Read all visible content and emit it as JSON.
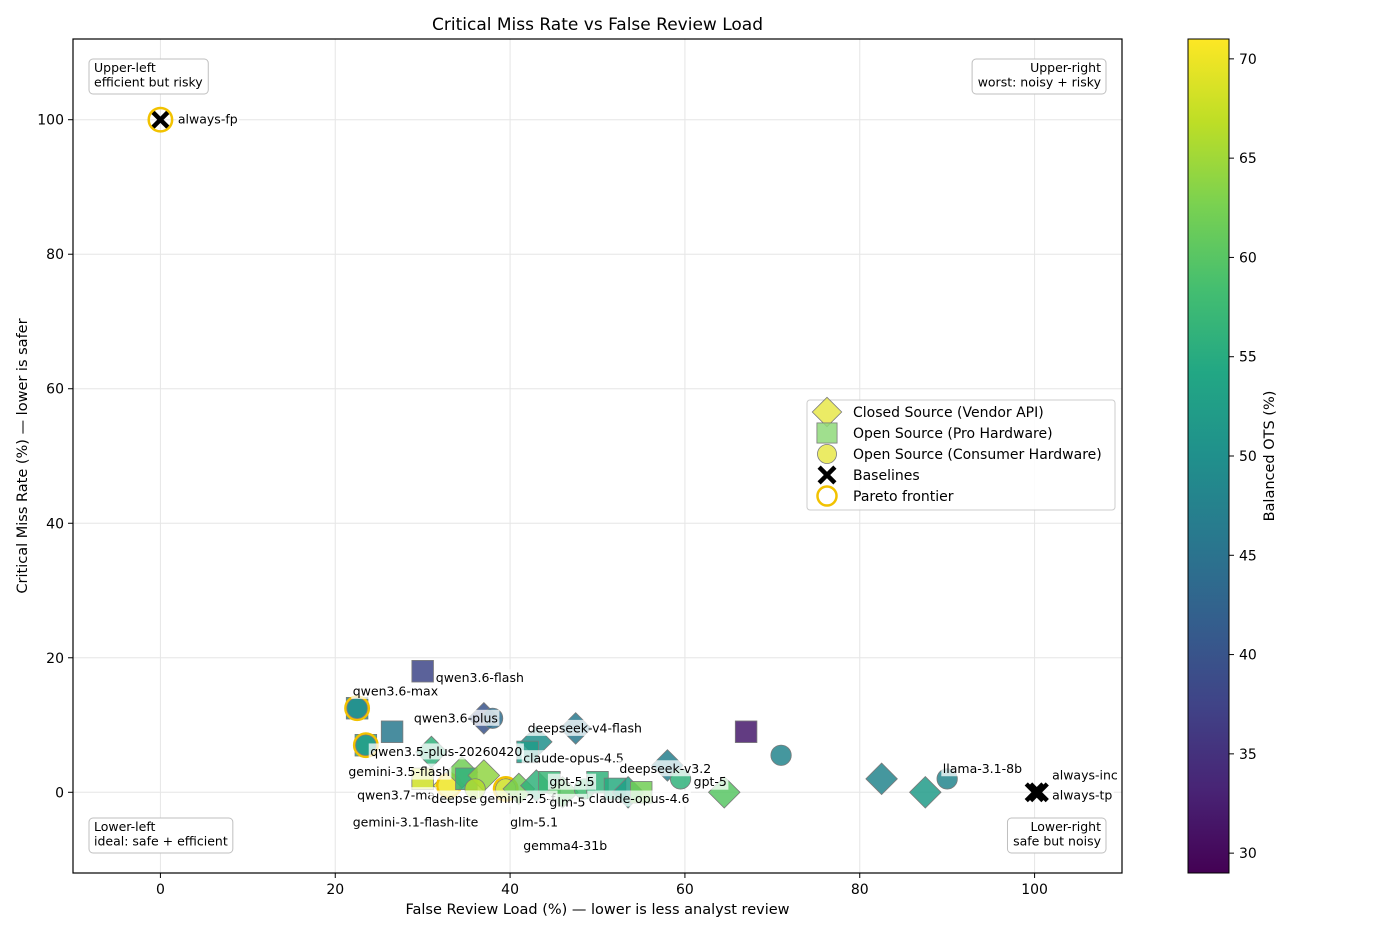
{
  "chart_data": {
    "type": "scatter",
    "title": "Critical Miss Rate vs False Review Load",
    "xlabel": "False Review Load (%) — lower is less analyst review",
    "ylabel": "Critical Miss Rate (%) — lower is safer",
    "xlim": [
      -10,
      110
    ],
    "ylim": [
      -12,
      112
    ],
    "xticks": [
      0,
      20,
      40,
      60,
      80,
      100
    ],
    "yticks": [
      0,
      20,
      40,
      60,
      80,
      100
    ],
    "grid": true,
    "legend_position": "center-right",
    "legend": [
      {
        "label": "Closed Source (Vendor API)",
        "marker": "diamond",
        "color": "#e8e84a"
      },
      {
        "label": "Open Source (Pro Hardware)",
        "marker": "square",
        "color": "#8fd97a"
      },
      {
        "label": "Open Source (Consumer Hardware)",
        "marker": "circle",
        "color": "#e8e84a"
      },
      {
        "label": "Baselines",
        "marker": "x",
        "color": "#000000"
      },
      {
        "label": "Pareto frontier",
        "marker": "ring",
        "color": "#f2c200"
      }
    ],
    "colorbar": {
      "label": "Balanced OTS (%)",
      "range": [
        29,
        71
      ],
      "ticks": [
        30,
        35,
        40,
        45,
        50,
        55,
        60,
        65,
        70
      ],
      "colormap": "viridis"
    },
    "quadrants": [
      {
        "corner": "top-left",
        "lines": [
          "Upper-left",
          "efficient but risky"
        ]
      },
      {
        "corner": "top-right",
        "lines": [
          "Upper-right",
          "worst: noisy + risky"
        ]
      },
      {
        "corner": "bottom-left",
        "lines": [
          "Lower-left",
          "ideal: safe + efficient"
        ]
      },
      {
        "corner": "bottom-right",
        "lines": [
          "Lower-right",
          "safe but noisy"
        ]
      }
    ],
    "points": [
      {
        "x": 0,
        "y": 100,
        "shape": "x",
        "ots": null,
        "pareto": true
      },
      {
        "x": 100,
        "y": 0,
        "shape": "x",
        "ots": null,
        "pareto": false
      },
      {
        "x": 100.5,
        "y": 0,
        "shape": "x",
        "ots": null,
        "pareto": false
      },
      {
        "x": 30,
        "y": 18,
        "shape": "square",
        "ots": 38,
        "pareto": false
      },
      {
        "x": 22.5,
        "y": 12.5,
        "shape": "square",
        "ots": 48,
        "pareto": true
      },
      {
        "x": 22.5,
        "y": 12.5,
        "shape": "circle",
        "ots": 50,
        "pareto": false
      },
      {
        "x": 37,
        "y": 11,
        "shape": "diamond",
        "ots": 40,
        "pareto": false
      },
      {
        "x": 38,
        "y": 11,
        "shape": "circle",
        "ots": 44,
        "pareto": false
      },
      {
        "x": 26.5,
        "y": 9,
        "shape": "square",
        "ots": 46,
        "pareto": false
      },
      {
        "x": 23.5,
        "y": 7,
        "shape": "square",
        "ots": 55,
        "pareto": true
      },
      {
        "x": 23.5,
        "y": 7,
        "shape": "circle",
        "ots": 52,
        "pareto": false
      },
      {
        "x": 47.5,
        "y": 9.5,
        "shape": "diamond",
        "ots": 46,
        "pareto": false
      },
      {
        "x": 43,
        "y": 7.5,
        "shape": "diamond",
        "ots": 50,
        "pareto": false
      },
      {
        "x": 42,
        "y": 6,
        "shape": "square",
        "ots": 52,
        "pareto": false
      },
      {
        "x": 31,
        "y": 6,
        "shape": "diamond",
        "ots": 56,
        "pareto": false
      },
      {
        "x": 67,
        "y": 9,
        "shape": "square",
        "ots": 32,
        "pareto": false
      },
      {
        "x": 71,
        "y": 5.5,
        "shape": "circle",
        "ots": 48,
        "pareto": false
      },
      {
        "x": 58,
        "y": 4,
        "shape": "diamond",
        "ots": 47,
        "pareto": false
      },
      {
        "x": 59.5,
        "y": 2,
        "shape": "circle",
        "ots": 56,
        "pareto": false
      },
      {
        "x": 64.5,
        "y": 0,
        "shape": "diamond",
        "ots": 60,
        "pareto": false
      },
      {
        "x": 82.5,
        "y": 2,
        "shape": "diamond",
        "ots": 48,
        "pareto": false
      },
      {
        "x": 87.5,
        "y": 0,
        "shape": "diamond",
        "ots": 52,
        "pareto": false
      },
      {
        "x": 90,
        "y": 2,
        "shape": "circle",
        "ots": 48,
        "pareto": false
      },
      {
        "x": 33,
        "y": 1,
        "shape": "diamond",
        "ots": 70,
        "pareto": true
      },
      {
        "x": 30,
        "y": 2,
        "shape": "square",
        "ots": 68,
        "pareto": false
      },
      {
        "x": 34.5,
        "y": 3,
        "shape": "diamond",
        "ots": 62,
        "pareto": false
      },
      {
        "x": 35,
        "y": 2,
        "shape": "square",
        "ots": 56,
        "pareto": false
      },
      {
        "x": 37,
        "y": 2.5,
        "shape": "diamond",
        "ots": 64,
        "pareto": false
      },
      {
        "x": 36,
        "y": 0.5,
        "shape": "circle",
        "ots": 66,
        "pareto": false
      },
      {
        "x": 39.5,
        "y": 0.5,
        "shape": "circle",
        "ots": 68,
        "pareto": true
      },
      {
        "x": 41,
        "y": 0.5,
        "shape": "diamond",
        "ots": 62,
        "pareto": false
      },
      {
        "x": 43,
        "y": 1,
        "shape": "diamond",
        "ots": 56,
        "pareto": false
      },
      {
        "x": 44.5,
        "y": 1.5,
        "shape": "square",
        "ots": 57,
        "pareto": false
      },
      {
        "x": 46,
        "y": 0,
        "shape": "diamond",
        "ots": 60,
        "pareto": false
      },
      {
        "x": 48.5,
        "y": 0.5,
        "shape": "circle",
        "ots": 58,
        "pareto": false
      },
      {
        "x": 50,
        "y": 1.5,
        "shape": "square",
        "ots": 56,
        "pareto": false
      },
      {
        "x": 52,
        "y": 0.5,
        "shape": "square",
        "ots": 55,
        "pareto": false
      },
      {
        "x": 53.5,
        "y": 0,
        "shape": "diamond",
        "ots": 53,
        "pareto": false
      },
      {
        "x": 55,
        "y": 0,
        "shape": "square",
        "ots": 62,
        "pareto": false
      }
    ],
    "labels": [
      {
        "text": "always-fp",
        "x": 0,
        "y": 100,
        "dx": 2,
        "dy": 0
      },
      {
        "text": "always-inc",
        "x": 100,
        "y": 0,
        "dx": 2,
        "dy": 2.5
      },
      {
        "text": "always-tp",
        "x": 100,
        "y": 0,
        "dx": 2,
        "dy": -0.5
      },
      {
        "text": "qwen3.6-flash",
        "x": 30,
        "y": 18,
        "dx": 1.5,
        "dy": -1
      },
      {
        "text": "qwen3.6-max",
        "x": 22.5,
        "y": 12.5,
        "dx": -0.5,
        "dy": 2.5
      },
      {
        "text": "qwen3.6-plus",
        "x": 38,
        "y": 11,
        "dx": -9,
        "dy": 0
      },
      {
        "text": "qwen3.5-plus-20260420",
        "x": 23.5,
        "y": 7,
        "dx": 0.5,
        "dy": -1
      },
      {
        "text": "gemini-3.5-flash",
        "x": 23.5,
        "y": 7,
        "dx": -2,
        "dy": -4
      },
      {
        "text": "deepseek-v4-flash",
        "x": 42,
        "y": 6,
        "dx": 0,
        "dy": 3.5
      },
      {
        "text": "claude-opus-4.5",
        "x": 42,
        "y": 6,
        "dx": -0.5,
        "dy": -1
      },
      {
        "text": "deepseek-v3.2",
        "x": 58,
        "y": 4,
        "dx": -5.5,
        "dy": -0.5
      },
      {
        "text": "gpt-5.5",
        "x": 44.5,
        "y": 1.5,
        "dx": 0,
        "dy": 0
      },
      {
        "text": "gpt-5",
        "x": 59.5,
        "y": 2,
        "dx": 1.5,
        "dy": -0.5
      },
      {
        "text": "llama-3.1-8b",
        "x": 90,
        "y": 2,
        "dx": -0.5,
        "dy": 1.5
      },
      {
        "text": "qwen3.7-ma",
        "x": 30,
        "y": 2,
        "dx": -7.5,
        "dy": -2.5
      },
      {
        "text": "deepse",
        "x": 33,
        "y": 1,
        "dx": -2,
        "dy": -2
      },
      {
        "text": "gemini-2.5-f",
        "x": 39.5,
        "y": 0.5,
        "dx": -3,
        "dy": -1.5
      },
      {
        "text": "glm-5",
        "x": 48.5,
        "y": 0.5,
        "dx": -4,
        "dy": -2
      },
      {
        "text": "claude-opus-4.6",
        "x": 53.5,
        "y": 0,
        "dx": -4.5,
        "dy": -1
      },
      {
        "text": "gemini-3.1-flash-lite",
        "x": 23.5,
        "y": 0,
        "dx": -1.5,
        "dy": -4.5
      },
      {
        "text": "glm-5.1",
        "x": 41,
        "y": 0,
        "dx": -1,
        "dy": -4.5
      },
      {
        "text": "gemma4-31b",
        "x": 41,
        "y": 0,
        "dx": 0.5,
        "dy": -8
      }
    ]
  }
}
